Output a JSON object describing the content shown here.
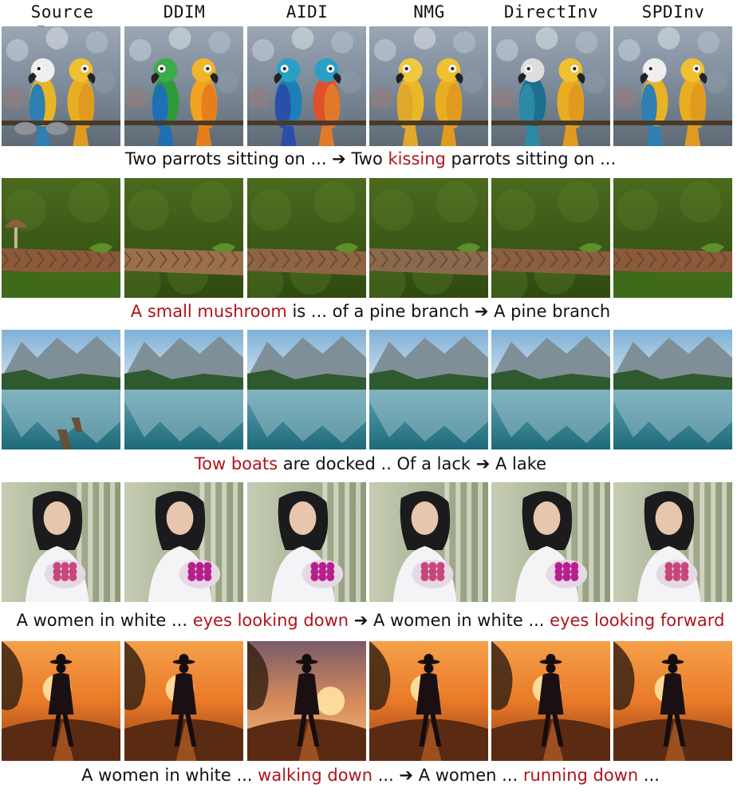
{
  "columns": [
    "Source Image",
    "DDIM",
    "AIDI",
    "NMG",
    "DirectInv",
    "SPDInv"
  ],
  "arrow": "➔",
  "rows": [
    {
      "scene": "parrots",
      "caption": [
        {
          "text": "Two parrots sitting on ... ",
          "hl": false
        },
        {
          "text": "➔",
          "hl": false
        },
        {
          "text": " Two ",
          "hl": false
        },
        {
          "text": "kissing",
          "hl": true
        },
        {
          "text": " parrots sitting on ...",
          "hl": false
        }
      ]
    },
    {
      "scene": "branch",
      "caption": [
        {
          "text": "A small mushroom",
          "hl": true
        },
        {
          "text": " is ... of a pine branch ",
          "hl": false
        },
        {
          "text": "➔",
          "hl": false
        },
        {
          "text": " A pine branch",
          "hl": false
        }
      ]
    },
    {
      "scene": "lake",
      "caption": [
        {
          "text": "Tow boats",
          "hl": true
        },
        {
          "text": " are docked .. Of a lack ",
          "hl": false
        },
        {
          "text": "➔",
          "hl": false
        },
        {
          "text": " A lake",
          "hl": false
        }
      ]
    },
    {
      "scene": "woman",
      "caption": [
        {
          "text": "A women in white ... ",
          "hl": false
        },
        {
          "text": "eyes looking down",
          "hl": true
        },
        {
          "text": " ",
          "hl": false
        },
        {
          "text": "➔",
          "hl": false
        },
        {
          "text": " A women in white ... ",
          "hl": false
        },
        {
          "text": "eyes looking forward",
          "hl": true
        }
      ]
    },
    {
      "scene": "sunset",
      "caption": [
        {
          "text": "A women in white ... ",
          "hl": false
        },
        {
          "text": "walking down",
          "hl": true
        },
        {
          "text": " ... ",
          "hl": false
        },
        {
          "text": "➔",
          "hl": false
        },
        {
          "text": " A women ... ",
          "hl": false
        },
        {
          "text": "running down",
          "hl": true
        },
        {
          "text": " ...",
          "hl": false
        }
      ]
    }
  ]
}
